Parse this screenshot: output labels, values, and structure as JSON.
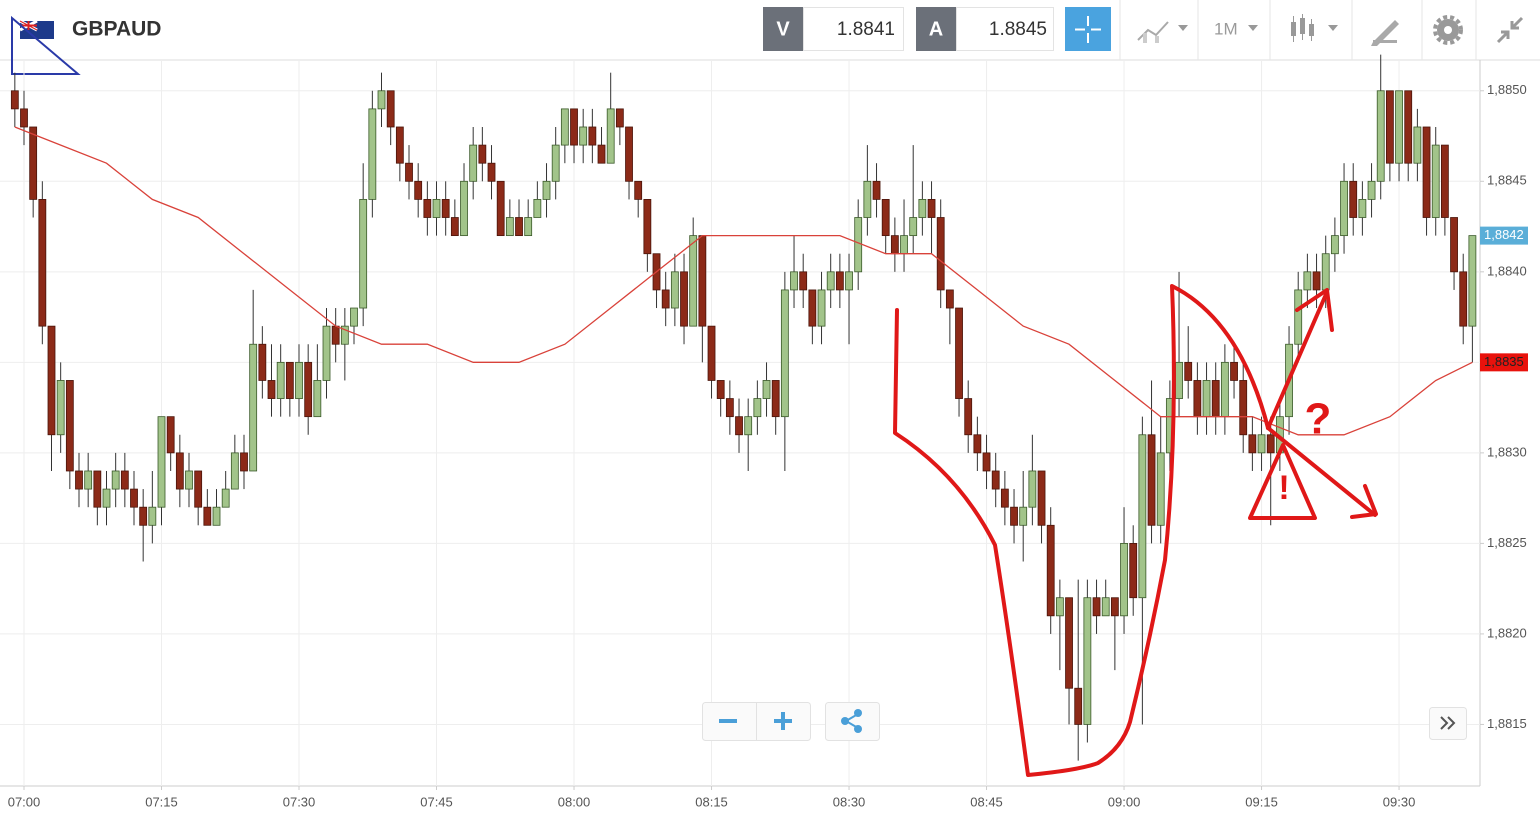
{
  "header": {
    "symbol": "GBPAUD",
    "bid_label": "V",
    "bid": "1.8841",
    "ask_label": "A",
    "ask": "1.8845",
    "timeframe": "1M"
  },
  "chart_data": {
    "type": "candlestick",
    "categories": [
      null,
      "07:00",
      null,
      null,
      null,
      null,
      null,
      null,
      null,
      null,
      null,
      null,
      null,
      null,
      null,
      null,
      "07:15",
      null,
      null,
      null,
      null,
      null,
      null,
      null,
      null,
      null,
      null,
      null,
      null,
      null,
      null,
      "07:30",
      null,
      null,
      null,
      null,
      null,
      null,
      null,
      null,
      null,
      null,
      null,
      null,
      null,
      null,
      "07:45",
      null,
      null,
      null,
      null,
      null,
      null,
      null,
      null,
      null,
      null,
      null,
      null,
      null,
      null,
      "08:00",
      null,
      null,
      null,
      null,
      null,
      null,
      null,
      null,
      null,
      null,
      null,
      null,
      null,
      null,
      "08:15",
      null,
      null,
      null,
      null,
      null,
      null,
      null,
      null,
      null,
      null,
      null,
      null,
      null,
      null,
      "08:30",
      null,
      null,
      null,
      null,
      null,
      null,
      null,
      null,
      null,
      null,
      null,
      null,
      null,
      null,
      "08:45",
      null,
      null,
      null,
      null,
      null,
      null,
      null,
      null,
      null,
      null,
      null,
      null,
      null,
      null,
      "09:00",
      null,
      null,
      null,
      null,
      null,
      null,
      null,
      null,
      null,
      null,
      null,
      null,
      null,
      null,
      "09:15",
      null,
      null,
      null,
      null,
      null,
      null,
      null,
      null,
      null,
      null,
      null,
      null,
      null,
      null,
      "09:30",
      null,
      null,
      null,
      null,
      null,
      null,
      null,
      null
    ],
    "open": [
      1.885,
      1.8849,
      1.8848,
      1.8844,
      1.8837,
      1.8831,
      1.8834,
      1.8829,
      1.8828,
      1.8829,
      1.8827,
      1.8828,
      1.8829,
      1.8828,
      1.8827,
      1.8826,
      1.8827,
      1.8832,
      1.883,
      1.8828,
      1.8829,
      1.8827,
      1.8826,
      1.8827,
      1.8828,
      1.883,
      1.8829,
      1.8836,
      1.8834,
      1.8833,
      1.8835,
      1.8833,
      1.8835,
      1.8832,
      1.8834,
      1.8837,
      1.8836,
      1.8837,
      1.8838,
      1.8844,
      1.8849,
      1.885,
      1.8848,
      1.8846,
      1.8845,
      1.8844,
      1.8843,
      1.8844,
      1.8843,
      1.8842,
      1.8845,
      1.8847,
      1.8846,
      1.8845,
      1.8842,
      1.8843,
      1.8842,
      1.8843,
      1.8844,
      1.8845,
      1.8847,
      1.8849,
      1.8847,
      1.8848,
      1.8847,
      1.8846,
      1.8849,
      1.8848,
      1.8845,
      1.8844,
      1.8841,
      1.8839,
      1.8838,
      1.884,
      1.8837,
      1.8842,
      1.8837,
      1.8834,
      1.8833,
      1.8832,
      1.8831,
      1.8832,
      1.8833,
      1.8834,
      1.8832,
      1.8839,
      1.884,
      1.8839,
      1.8837,
      1.8839,
      1.884,
      1.8839,
      1.884,
      1.8843,
      1.8845,
      1.8844,
      1.8842,
      1.8841,
      1.8842,
      1.8843,
      1.8844,
      1.8843,
      1.8839,
      1.8838,
      1.8833,
      1.8831,
      1.883,
      1.8829,
      1.8828,
      1.8827,
      1.8826,
      1.8827,
      1.8829,
      1.8826,
      1.8821,
      1.8822,
      1.8817,
      1.8815,
      1.8822,
      1.8821,
      1.8822,
      1.8821,
      1.8825,
      1.8822,
      1.8831,
      1.8826,
      1.883,
      1.8833,
      1.8835,
      1.8834,
      1.8832,
      1.8834,
      1.8832,
      1.8835,
      1.8834,
      1.8831,
      1.883,
      1.8831,
      1.883,
      1.8832,
      1.8836,
      1.8839,
      1.884,
      1.8839,
      1.8841,
      1.8842,
      1.8845,
      1.8843,
      1.8844,
      1.8845,
      1.885,
      1.8846,
      1.885,
      1.8846,
      1.8848,
      1.8843,
      1.8847,
      1.8843,
      1.884,
      1.8837
    ],
    "high": [
      1.8851,
      1.885,
      1.8848,
      1.8845,
      1.8837,
      1.8835,
      1.8834,
      1.883,
      1.883,
      1.8829,
      1.8829,
      1.883,
      1.883,
      1.8829,
      1.8828,
      1.8829,
      1.8832,
      1.8832,
      1.8831,
      1.883,
      1.8829,
      1.8828,
      1.8828,
      1.8829,
      1.8831,
      1.8831,
      1.8839,
      1.8837,
      1.8836,
      1.8836,
      1.8835,
      1.8836,
      1.8836,
      1.8836,
      1.8838,
      1.8838,
      1.8838,
      1.8838,
      1.8846,
      1.885,
      1.8851,
      1.885,
      1.8848,
      1.8847,
      1.8846,
      1.8845,
      1.8845,
      1.8845,
      1.8844,
      1.8846,
      1.8848,
      1.8848,
      1.8847,
      1.8845,
      1.8844,
      1.8844,
      1.8844,
      1.8845,
      1.8846,
      1.8848,
      1.8849,
      1.8849,
      1.8849,
      1.8849,
      1.8848,
      1.8851,
      1.8849,
      1.8848,
      1.8845,
      1.8844,
      1.8841,
      1.884,
      1.8841,
      1.8841,
      1.8843,
      1.8842,
      1.8837,
      1.8834,
      1.8834,
      1.8833,
      1.8833,
      1.8834,
      1.8835,
      1.8834,
      1.884,
      1.8842,
      1.8841,
      1.8839,
      1.884,
      1.8841,
      1.8841,
      1.8841,
      1.8844,
      1.8847,
      1.8846,
      1.8844,
      1.8843,
      1.8844,
      1.8847,
      1.8845,
      1.8845,
      1.8844,
      1.8839,
      1.8838,
      1.8834,
      1.8832,
      1.8831,
      1.883,
      1.8829,
      1.8828,
      1.8829,
      1.8831,
      1.8829,
      1.8827,
      1.8823,
      1.8822,
      1.8823,
      1.8823,
      1.8823,
      1.8823,
      1.8822,
      1.8827,
      1.8826,
      1.8832,
      1.8834,
      1.8832,
      1.8834,
      1.884,
      1.8837,
      1.8835,
      1.8835,
      1.8835,
      1.8836,
      1.8836,
      1.8835,
      1.8832,
      1.8832,
      1.8832,
      1.8833,
      1.8837,
      1.884,
      1.8841,
      1.8841,
      1.8842,
      1.8843,
      1.8846,
      1.8846,
      1.8845,
      1.8846,
      1.8852,
      1.885,
      1.885,
      1.885,
      1.8849,
      1.8848,
      1.8848,
      1.8847,
      1.8843,
      1.8841,
      1.8842
    ],
    "low": [
      1.8848,
      1.8847,
      1.8843,
      1.8836,
      1.8829,
      1.883,
      1.8828,
      1.8827,
      1.8827,
      1.8826,
      1.8826,
      1.8827,
      1.8827,
      1.8826,
      1.8824,
      1.8825,
      1.8826,
      1.8829,
      1.8827,
      1.8827,
      1.8826,
      1.8826,
      1.8826,
      1.8827,
      1.8828,
      1.8828,
      1.8829,
      1.8833,
      1.8832,
      1.8832,
      1.8832,
      1.8832,
      1.8831,
      1.8832,
      1.8833,
      1.8835,
      1.8834,
      1.8836,
      1.8837,
      1.8843,
      1.8848,
      1.8847,
      1.8845,
      1.8844,
      1.8843,
      1.8842,
      1.8842,
      1.8842,
      1.8842,
      1.8842,
      1.8844,
      1.8845,
      1.8844,
      1.8842,
      1.8842,
      1.8842,
      1.8842,
      1.8843,
      1.8843,
      1.8844,
      1.8846,
      1.8846,
      1.8846,
      1.8846,
      1.8846,
      1.8846,
      1.8847,
      1.8844,
      1.8843,
      1.884,
      1.8838,
      1.8837,
      1.8837,
      1.8836,
      1.8837,
      1.8835,
      1.8833,
      1.8832,
      1.8831,
      1.883,
      1.8829,
      1.8831,
      1.8832,
      1.8831,
      1.8829,
      1.8838,
      1.8838,
      1.8836,
      1.8836,
      1.8838,
      1.8838,
      1.8836,
      1.8839,
      1.8842,
      1.8843,
      1.8841,
      1.884,
      1.884,
      1.8841,
      1.8842,
      1.8841,
      1.8838,
      1.8836,
      1.8832,
      1.883,
      1.8829,
      1.8828,
      1.8827,
      1.8826,
      1.8825,
      1.8824,
      1.8826,
      1.8825,
      1.882,
      1.8818,
      1.8815,
      1.8813,
      1.8814,
      1.882,
      1.8821,
      1.8818,
      1.882,
      1.8821,
      1.8815,
      1.8825,
      1.8825,
      1.8829,
      1.8832,
      1.8833,
      1.8831,
      1.8831,
      1.8831,
      1.8831,
      1.8833,
      1.883,
      1.8829,
      1.8829,
      1.8826,
      1.8829,
      1.8831,
      1.8835,
      1.8838,
      1.8838,
      1.8838,
      1.884,
      1.8841,
      1.8842,
      1.8842,
      1.8843,
      1.8844,
      1.8845,
      1.8845,
      1.8845,
      1.8845,
      1.8842,
      1.8842,
      1.8842,
      1.8839,
      1.8836,
      1.8835
    ],
    "close": [
      1.8849,
      1.8848,
      1.8844,
      1.8837,
      1.8831,
      1.8834,
      1.8829,
      1.8828,
      1.8829,
      1.8827,
      1.8828,
      1.8829,
      1.8828,
      1.8827,
      1.8826,
      1.8827,
      1.8832,
      1.883,
      1.8828,
      1.8829,
      1.8827,
      1.8826,
      1.8827,
      1.8828,
      1.883,
      1.8829,
      1.8836,
      1.8834,
      1.8833,
      1.8835,
      1.8833,
      1.8835,
      1.8832,
      1.8834,
      1.8837,
      1.8836,
      1.8837,
      1.8838,
      1.8844,
      1.8849,
      1.885,
      1.8848,
      1.8846,
      1.8845,
      1.8844,
      1.8843,
      1.8844,
      1.8843,
      1.8842,
      1.8845,
      1.8847,
      1.8846,
      1.8845,
      1.8842,
      1.8843,
      1.8842,
      1.8843,
      1.8844,
      1.8845,
      1.8847,
      1.8849,
      1.8847,
      1.8848,
      1.8847,
      1.8846,
      1.8849,
      1.8848,
      1.8845,
      1.8844,
      1.8841,
      1.8839,
      1.8838,
      1.884,
      1.8837,
      1.8842,
      1.8837,
      1.8834,
      1.8833,
      1.8832,
      1.8831,
      1.8832,
      1.8833,
      1.8834,
      1.8832,
      1.8839,
      1.884,
      1.8839,
      1.8837,
      1.8839,
      1.884,
      1.8839,
      1.884,
      1.8843,
      1.8845,
      1.8844,
      1.8842,
      1.8841,
      1.8842,
      1.8843,
      1.8844,
      1.8843,
      1.8839,
      1.8838,
      1.8833,
      1.8831,
      1.883,
      1.8829,
      1.8828,
      1.8827,
      1.8826,
      1.8827,
      1.8829,
      1.8826,
      1.8821,
      1.8822,
      1.8817,
      1.8815,
      1.8822,
      1.8821,
      1.8822,
      1.8821,
      1.8825,
      1.8822,
      1.8831,
      1.8826,
      1.883,
      1.8833,
      1.8835,
      1.8834,
      1.8832,
      1.8834,
      1.8832,
      1.8835,
      1.8834,
      1.8831,
      1.883,
      1.8831,
      1.883,
      1.8832,
      1.8836,
      1.8839,
      1.884,
      1.8839,
      1.8841,
      1.8842,
      1.8845,
      1.8843,
      1.8844,
      1.8845,
      1.885,
      1.8846,
      1.885,
      1.8846,
      1.8848,
      1.8843,
      1.8847,
      1.8843,
      1.884,
      1.8837,
      1.8842
    ],
    "up_color": "#a2c48a",
    "down_color": "#8c2a18",
    "ma": {
      "color": "#d9423a",
      "x": [
        0,
        5,
        10,
        15,
        20,
        25,
        30,
        35,
        40,
        45,
        50,
        55,
        60,
        65,
        70,
        75,
        80,
        85,
        90,
        95,
        100,
        105,
        110,
        115,
        120,
        125,
        130,
        135,
        140,
        145,
        150,
        155,
        159
      ],
      "values": [
        1.8848,
        1.8847,
        1.8846,
        1.8844,
        1.8843,
        1.8841,
        1.8839,
        1.8837,
        1.8836,
        1.8836,
        1.8835,
        1.8835,
        1.8836,
        1.8838,
        1.884,
        1.8842,
        1.8842,
        1.8842,
        1.8842,
        1.8841,
        1.8841,
        1.8839,
        1.8837,
        1.8836,
        1.8834,
        1.8832,
        1.8832,
        1.8832,
        1.8831,
        1.8831,
        1.8832,
        1.8834,
        1.8835
      ]
    },
    "price_tags": [
      {
        "value": 1.8842,
        "label": "1,8842",
        "color": "#5aaed8"
      },
      {
        "value": 1.8835,
        "label": "1,8835",
        "color": "#e8120c"
      }
    ],
    "ylim": [
      1.88116,
      1.88517
    ],
    "yticks": [
      {
        "value": 1.8815,
        "label": "1,8815"
      },
      {
        "value": 1.882,
        "label": "1,8820"
      },
      {
        "value": 1.8825,
        "label": "1,8825"
      },
      {
        "value": 1.883,
        "label": "1,8830"
      },
      {
        "value": 1.8835,
        "label": "1,8835"
      },
      {
        "value": 1.884,
        "label": "1,8840"
      },
      {
        "value": 1.8845,
        "label": "1,8845"
      },
      {
        "value": 1.885,
        "label": "1,8850"
      }
    ],
    "grid": true,
    "annotations": [
      "?",
      "!"
    ]
  }
}
